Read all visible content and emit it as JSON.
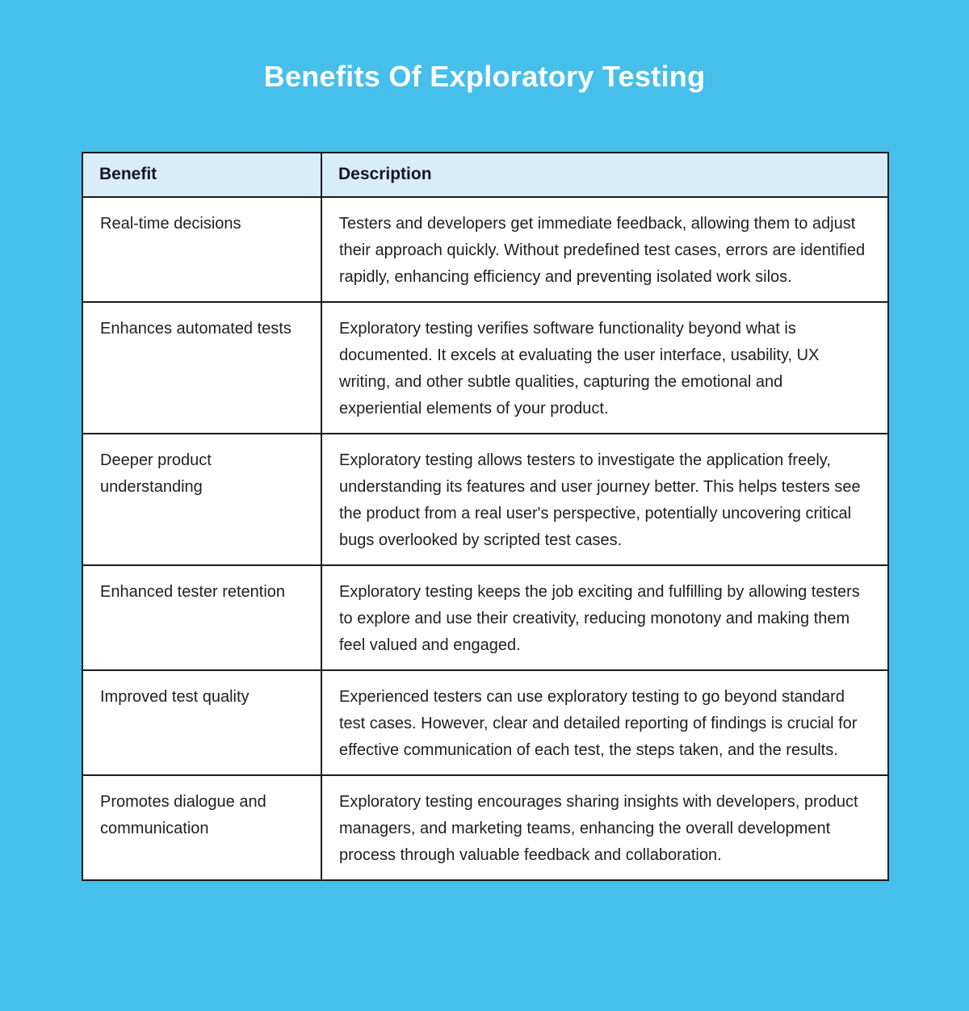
{
  "page": {
    "title": "Benefits Of Exploratory Testing",
    "colors": {
      "background": "#47BFEB",
      "header_bg": "#D9EDF8",
      "row_bg": "#FFFFFF",
      "border": "#1C1C1C",
      "title_text": "#FFFFFF",
      "body_text": "#1F1F1F"
    }
  },
  "table": {
    "columns": [
      "Benefit",
      "Description"
    ],
    "rows": [
      {
        "benefit": "Real-time decisions",
        "description": "Testers and developers get immediate feedback, allowing them to adjust their approach quickly. Without predefined test cases, errors are identified rapidly, enhancing efficiency and preventing isolated work silos."
      },
      {
        "benefit": "Enhances automated tests",
        "description": "Exploratory testing verifies software functionality beyond what is documented. It excels at evaluating the user interface, usability, UX writing, and other subtle qualities, capturing the emotional and experiential elements of your product."
      },
      {
        "benefit": "Deeper product understanding",
        "description": "Exploratory testing allows testers to investigate the application freely, understanding its features and user journey better. This helps testers see the product from a real user's perspective, potentially uncovering critical bugs overlooked by scripted test cases."
      },
      {
        "benefit": "Enhanced tester retention",
        "description": "Exploratory testing keeps the job exciting and fulfilling by allowing testers to explore and use their creativity, reducing monotony and making them feel valued and engaged."
      },
      {
        "benefit": "Improved test quality",
        "description": "Experienced testers can use exploratory testing to go beyond standard test cases. However, clear and detailed reporting of findings is crucial for effective communication of each test, the steps taken, and the results."
      },
      {
        "benefit": "Promotes dialogue and communication",
        "description": "Exploratory testing encourages sharing insights with developers, product managers, and marketing teams, enhancing the overall development process through valuable feedback and collaboration."
      }
    ]
  }
}
